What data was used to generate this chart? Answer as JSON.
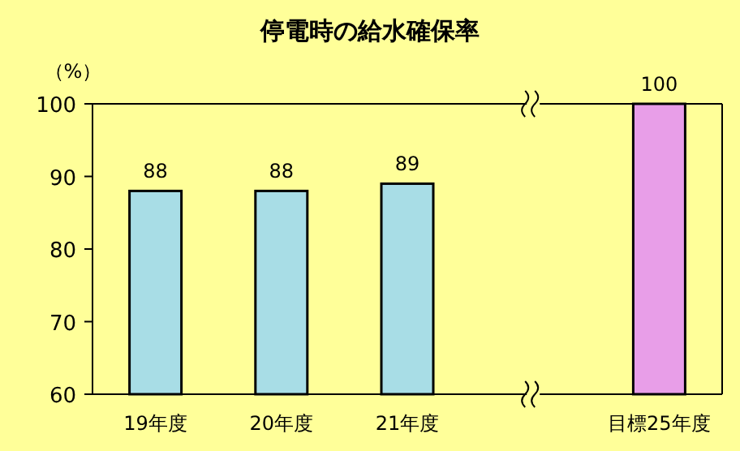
{
  "chart_data": {
    "type": "bar",
    "title": "停電時の給水確保率",
    "ylabel": "（%）",
    "categories": [
      "19年度",
      "20年度",
      "21年度",
      null,
      "目標25年度"
    ],
    "values": [
      88,
      88,
      89,
      null,
      100
    ],
    "colors": [
      "#a8dde6",
      "#a8dde6",
      "#a8dde6",
      null,
      "#e89ee8"
    ],
    "ylim": [
      60,
      100
    ],
    "yticks": [
      60,
      70,
      80,
      90,
      100
    ],
    "data_labels": true
  }
}
